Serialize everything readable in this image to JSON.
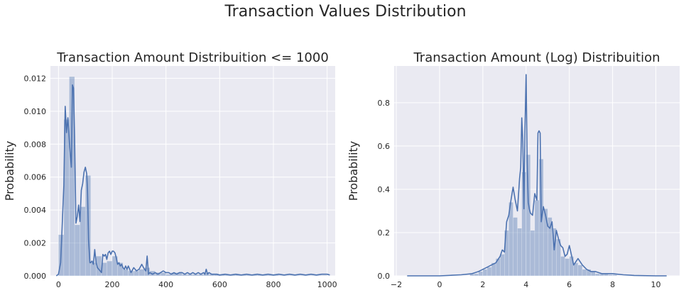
{
  "suptitle": "Transaction Values Distribution",
  "colors": {
    "plot_bg": "#EAEAF2",
    "grid": "#FFFFFF",
    "line": "#4C72B0",
    "bar": "#4C72B0",
    "text": "#262626"
  },
  "chart_data": [
    {
      "type": "bar",
      "title": "Transaction Amount Distribuition <= 1000",
      "xlabel": "",
      "ylabel": "Probability",
      "xlim": [
        -30,
        1030
      ],
      "ylim": [
        0,
        0.01275
      ],
      "xticks": [
        0,
        200,
        400,
        600,
        800,
        1000
      ],
      "yticks": [
        0,
        0.002,
        0.004,
        0.006,
        0.008,
        0.01,
        0.012
      ],
      "ytick_labels": [
        "0.000",
        "0.002",
        "0.004",
        "0.006",
        "0.008",
        "0.010",
        "0.012"
      ],
      "grid": true,
      "histogram": {
        "bin_width": 20,
        "bin_starts": [
          0,
          20,
          40,
          60,
          80,
          100,
          120,
          140,
          160,
          180,
          200,
          220,
          240,
          260,
          280,
          300,
          320,
          340,
          360,
          380,
          400,
          420,
          440,
          460,
          480,
          500,
          520,
          540,
          560,
          580,
          600,
          620,
          640,
          660,
          680,
          700,
          720,
          740,
          760,
          780,
          800,
          820,
          840,
          860,
          880,
          900,
          920,
          940,
          960,
          980
        ],
        "density": [
          0.0025,
          0.0095,
          0.0121,
          0.0031,
          0.0042,
          0.0061,
          0.0008,
          0.0012,
          0.0008,
          0.0009,
          0.0012,
          0.0008,
          0.0004,
          0.0003,
          0.0003,
          0.0004,
          0.0005,
          0.0003,
          0.0002,
          0.0002,
          0.0001,
          0.0002,
          0.0002,
          0.0001,
          0.0001,
          0.0001,
          0.0001,
          0.0002,
          0.0001,
          0.0001,
          0.0001,
          5e-05,
          5e-05,
          0.0001,
          5e-05,
          5e-05,
          5e-05,
          5e-05,
          5e-05,
          5e-05,
          5e-05,
          3e-05,
          3e-05,
          3e-05,
          3e-05,
          3e-05,
          3e-05,
          3e-05,
          3e-05,
          3e-05
        ]
      },
      "kde": {
        "x": [
          -8,
          0,
          8,
          15,
          20,
          25,
          30,
          35,
          42,
          48,
          52,
          56,
          60,
          65,
          70,
          75,
          80,
          85,
          90,
          95,
          100,
          105,
          108,
          112,
          117,
          120,
          125,
          130,
          135,
          140,
          145,
          150,
          155,
          160,
          165,
          170,
          175,
          180,
          185,
          190,
          195,
          200,
          205,
          210,
          215,
          220,
          225,
          230,
          235,
          240,
          245,
          250,
          255,
          260,
          270,
          280,
          290,
          300,
          310,
          320,
          325,
          330,
          335,
          340,
          350,
          360,
          370,
          380,
          390,
          400,
          410,
          420,
          430,
          440,
          450,
          460,
          470,
          480,
          490,
          500,
          510,
          520,
          530,
          540,
          545,
          550,
          555,
          560,
          570,
          580,
          590,
          600,
          620,
          640,
          660,
          680,
          700,
          720,
          740,
          760,
          780,
          800,
          820,
          840,
          860,
          880,
          900,
          920,
          940,
          960,
          980,
          1000,
          1010
        ],
        "y": [
          0,
          0.0001,
          0.0008,
          0.0035,
          0.0055,
          0.0103,
          0.0087,
          0.0096,
          0.0078,
          0.0066,
          0.0116,
          0.0114,
          0.0085,
          0.0032,
          0.0036,
          0.0043,
          0.0033,
          0.0052,
          0.0056,
          0.0063,
          0.0066,
          0.0062,
          0.0052,
          0.0022,
          0.0008,
          0.0008,
          0.0009,
          0.0007,
          0.0016,
          0.0008,
          0.0005,
          0.0004,
          0.0003,
          0.0002,
          0.0013,
          0.0012,
          0.0013,
          0.001,
          0.0014,
          0.0015,
          0.0013,
          0.0015,
          0.0015,
          0.0014,
          0.0011,
          0.0007,
          0.0008,
          0.0006,
          0.0007,
          0.0005,
          0.0004,
          0.0006,
          0.0004,
          0.0006,
          0.0002,
          0.0005,
          0.0003,
          0.0004,
          0.0007,
          0.0004,
          0.0003,
          0.0012,
          0.0001,
          0.0002,
          0.0001,
          0.0002,
          0.0001,
          0.0002,
          0.0003,
          0.0002,
          0.0002,
          0.0001,
          0.0002,
          0.0001,
          0.0002,
          0.0002,
          0.0001,
          0.0002,
          0.0001,
          0.0002,
          0.0001,
          0.0002,
          0.0001,
          0.0002,
          0.0001,
          0.0004,
          0.0001,
          0.0002,
          0.0001,
          0.0001,
          0.0001,
          5e-05,
          0.0001,
          5e-05,
          0.0001,
          5e-05,
          0.0001,
          5e-05,
          0.0001,
          5e-05,
          0.0001,
          5e-05,
          0.0001,
          5e-05,
          0.0001,
          5e-05,
          0.0001,
          5e-05,
          0.0001,
          5e-05,
          0.0001,
          0.0001,
          5e-05
        ]
      }
    },
    {
      "type": "bar",
      "title": "Transaction Amount (Log) Distribuition",
      "xlabel": "",
      "ylabel": "Probability",
      "xlim": [
        -2.1,
        11.1
      ],
      "ylim": [
        0,
        0.97
      ],
      "xticks": [
        -2,
        0,
        2,
        4,
        6,
        8,
        10
      ],
      "yticks": [
        0,
        0.2,
        0.4,
        0.6,
        0.8
      ],
      "ytick_labels": [
        "0.0",
        "0.2",
        "0.4",
        "0.6",
        "0.8"
      ],
      "grid": true,
      "histogram": {
        "bin_width": 0.2,
        "bin_starts": [
          1.4,
          1.6,
          1.8,
          2.0,
          2.2,
          2.4,
          2.6,
          2.8,
          3.0,
          3.2,
          3.4,
          3.6,
          3.8,
          4.0,
          4.2,
          4.4,
          4.6,
          4.8,
          5.0,
          5.2,
          5.4,
          5.6,
          5.8,
          6.0,
          6.2,
          6.4,
          6.6,
          6.8,
          7.0,
          7.2,
          7.4,
          7.6,
          7.8,
          8.0
        ],
        "density": [
          0.01,
          0.01,
          0.02,
          0.03,
          0.04,
          0.06,
          0.08,
          0.1,
          0.21,
          0.34,
          0.27,
          0.22,
          0.48,
          0.56,
          0.21,
          0.35,
          0.54,
          0.31,
          0.27,
          0.22,
          0.17,
          0.09,
          0.08,
          0.09,
          0.06,
          0.05,
          0.03,
          0.03,
          0.02,
          0.01,
          0.01,
          0.01,
          0.005,
          0.005
        ]
      },
      "kde": {
        "x": [
          -1.5,
          -1.0,
          0.0,
          1.0,
          1.5,
          1.8,
          2.0,
          2.2,
          2.4,
          2.6,
          2.8,
          2.9,
          3.0,
          3.1,
          3.2,
          3.3,
          3.4,
          3.5,
          3.6,
          3.7,
          3.75,
          3.8,
          3.85,
          3.9,
          3.95,
          4.0,
          4.05,
          4.1,
          4.15,
          4.2,
          4.3,
          4.4,
          4.5,
          4.55,
          4.6,
          4.65,
          4.7,
          4.8,
          4.9,
          5.0,
          5.1,
          5.2,
          5.3,
          5.4,
          5.5,
          5.6,
          5.7,
          5.8,
          5.9,
          6.0,
          6.2,
          6.4,
          6.6,
          6.8,
          7.0,
          7.2,
          7.5,
          8.0,
          8.5,
          9.0,
          10.0,
          10.5
        ],
        "y": [
          0,
          0,
          0,
          0.005,
          0.01,
          0.02,
          0.03,
          0.04,
          0.05,
          0.06,
          0.09,
          0.12,
          0.11,
          0.25,
          0.28,
          0.35,
          0.41,
          0.35,
          0.3,
          0.45,
          0.5,
          0.73,
          0.62,
          0.31,
          0.69,
          0.93,
          0.52,
          0.34,
          0.31,
          0.29,
          0.28,
          0.38,
          0.35,
          0.66,
          0.67,
          0.66,
          0.25,
          0.32,
          0.28,
          0.23,
          0.22,
          0.25,
          0.12,
          0.21,
          0.17,
          0.14,
          0.13,
          0.09,
          0.1,
          0.14,
          0.05,
          0.08,
          0.05,
          0.03,
          0.02,
          0.02,
          0.01,
          0.01,
          0.005,
          0.002,
          0,
          0
        ]
      }
    }
  ]
}
